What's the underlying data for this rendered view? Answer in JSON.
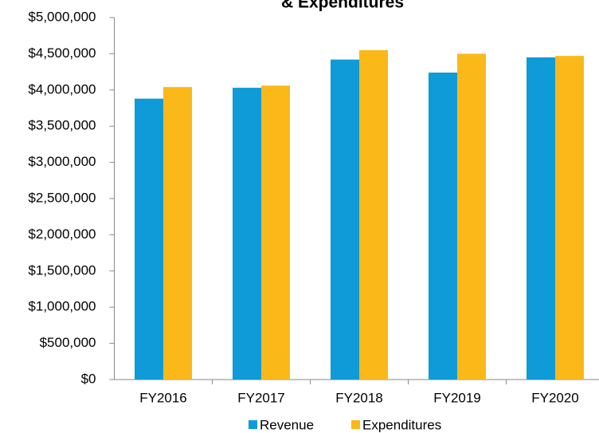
{
  "chart_data": {
    "type": "bar",
    "title": "& Expenditures",
    "categories": [
      "FY2016",
      "FY2017",
      "FY2018",
      "FY2019",
      "FY2020"
    ],
    "series": [
      {
        "name": "Revenue",
        "color": "#0e9bd8",
        "values": [
          3880000,
          4030000,
          4420000,
          4240000,
          4450000
        ]
      },
      {
        "name": "Expenditures",
        "color": "#fbb819",
        "values": [
          4040000,
          4060000,
          4550000,
          4500000,
          4470000
        ]
      }
    ],
    "ylim": [
      0,
      5000000
    ],
    "yticks": [
      {
        "value": 0,
        "label": "$0"
      },
      {
        "value": 500000,
        "label": "$500,000"
      },
      {
        "value": 1000000,
        "label": "$1,000,000"
      },
      {
        "value": 1500000,
        "label": "$1,500,000"
      },
      {
        "value": 2000000,
        "label": "$2,000,000"
      },
      {
        "value": 2500000,
        "label": "$2,500,000"
      },
      {
        "value": 3000000,
        "label": "$3,000,000"
      },
      {
        "value": 3500000,
        "label": "$3,500,000"
      },
      {
        "value": 4000000,
        "label": "$4,000,000"
      },
      {
        "value": 4500000,
        "label": "$4,500,000"
      },
      {
        "value": 5000000,
        "label": "$5,000,000"
      }
    ],
    "grid": false,
    "legend": "bottom"
  }
}
